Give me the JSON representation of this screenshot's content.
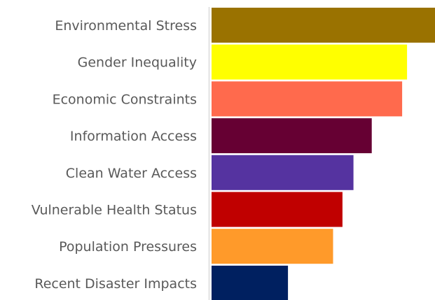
{
  "chart_data": {
    "type": "bar",
    "orientation": "horizontal",
    "title": "",
    "xlabel": "",
    "ylabel": "",
    "grid": false,
    "legend": "none",
    "xlim": [
      0,
      100
    ],
    "categories": [
      "Environmental Stress",
      "Gender Inequality",
      "Economic Constraints",
      "Information Access",
      "Clean Water Access",
      "Vulnerable Health Status",
      "Population Pressures",
      "Recent Disaster Impacts"
    ],
    "values": [
      100,
      87.5,
      85.3,
      71.7,
      63.5,
      58.6,
      54.4,
      34.2
    ],
    "colors": [
      "#9A7200",
      "#FFFF00",
      "#FF6A4D",
      "#660033",
      "#5533A0",
      "#C00000",
      "#FF9A2A",
      "#002060"
    ]
  }
}
